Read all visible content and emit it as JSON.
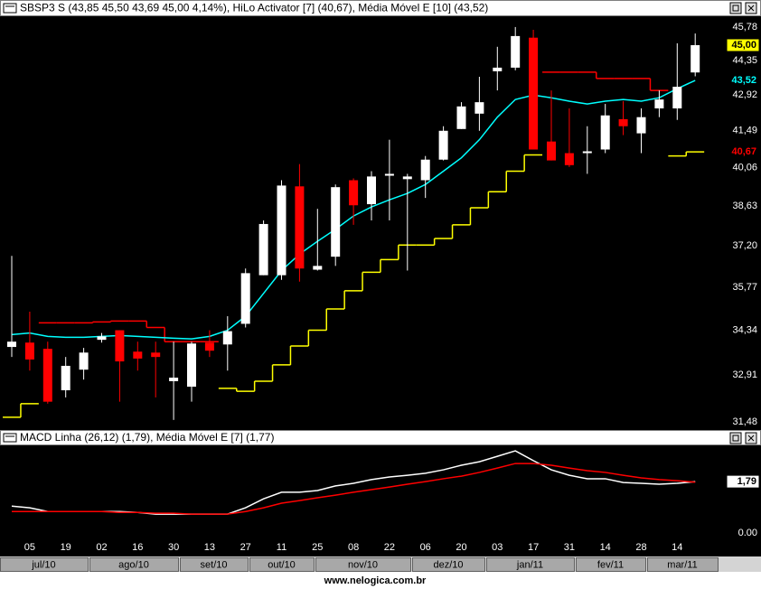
{
  "chart_data": [
    {
      "type": "candlestick",
      "title": "SBSP3 S (43,85  45,50  43,69  45,00  4,14%), HiLo Activator [7] (40,67), Média Móvel E [10] (43,52)",
      "open": [
        33.8,
        33.94,
        33.74,
        32.44,
        33.08,
        34.03,
        34.34,
        33.65,
        33.62,
        32.72,
        32.55,
        33.94,
        33.88,
        34.55,
        36.18,
        36.18,
        39.36,
        36.37,
        36.82,
        39.59,
        38.7,
        39.76,
        39.63,
        39.59,
        40.37,
        41.56,
        42.17,
        43.9,
        44.05,
        45.32,
        41.07,
        40.62,
        40.62,
        40.76,
        41.95,
        41.39,
        42.38,
        42.38,
        43.85
      ],
      "high": [
        36.85,
        34.95,
        33.97,
        33.48,
        33.77,
        34.25,
        34.34,
        33.97,
        33.97,
        33.97,
        33.97,
        34.34,
        34.8,
        36.41,
        38.11,
        39.59,
        40.2,
        38.53,
        39.43,
        39.66,
        39.93,
        41.14,
        39.83,
        40.51,
        41.67,
        42.63,
        43.67,
        44.93,
        45.78,
        45.66,
        43.11,
        42.38,
        41.67,
        42.56,
        42.67,
        42.38,
        43.11,
        45.08,
        45.5
      ],
      "low": [
        33.48,
        33.05,
        32.03,
        32.22,
        32.77,
        33.94,
        32.09,
        33.05,
        32.22,
        31.54,
        32.09,
        33.48,
        33.05,
        34.43,
        36.18,
        36.02,
        35.96,
        36.34,
        36.5,
        37.95,
        38.11,
        38.11,
        36.34,
        38.93,
        40.34,
        41.56,
        41.49,
        43.11,
        43.94,
        40.76,
        40.34,
        40.09,
        39.83,
        40.62,
        41.32,
        40.62,
        42.03,
        41.92,
        43.69
      ],
      "close": [
        33.97,
        33.4,
        32.09,
        33.2,
        33.62,
        34.14,
        33.34,
        33.43,
        33.48,
        32.83,
        33.91,
        33.68,
        34.31,
        36.25,
        37.98,
        39.39,
        36.41,
        36.5,
        39.33,
        38.66,
        39.73,
        39.83,
        39.73,
        40.37,
        41.49,
        42.46,
        42.63,
        44.05,
        45.39,
        40.76,
        40.34,
        40.16,
        40.69,
        42.1,
        41.67,
        42.03,
        42.74,
        43.26,
        45.0
      ],
      "up_color": "#ffffff",
      "down_color": "#ff0000",
      "series": [
        {
          "color": "#ffff00",
          "style": "step",
          "values": [
            31.62,
            32.03,
            null,
            null,
            null,
            null,
            null,
            null,
            null,
            null,
            null,
            null,
            32.5,
            32.41,
            32.72,
            33.23,
            33.83,
            34.34,
            35.04,
            35.65,
            36.28,
            36.72,
            37.23,
            37.23,
            37.46,
            37.95,
            38.57,
            39.16,
            39.93,
            40.55,
            null,
            null,
            null,
            null,
            null,
            null,
            null,
            40.51,
            40.67
          ]
        },
        {
          "color": "#ff0000",
          "style": "step",
          "values": [
            null,
            null,
            34.58,
            34.58,
            34.58,
            34.61,
            34.64,
            34.64,
            34.43,
            33.97,
            33.97,
            33.97,
            null,
            null,
            null,
            null,
            null,
            null,
            null,
            null,
            null,
            null,
            null,
            null,
            null,
            null,
            null,
            null,
            null,
            null,
            43.86,
            43.86,
            43.86,
            43.6,
            43.6,
            43.6,
            43.11,
            null,
            null
          ]
        },
        {
          "color": "#00ffff",
          "style": "line",
          "values": [
            34.2,
            34.25,
            34.14,
            34.11,
            34.11,
            34.14,
            34.17,
            34.14,
            34.11,
            34.08,
            34.06,
            34.14,
            34.34,
            34.8,
            35.56,
            36.34,
            36.91,
            37.36,
            37.79,
            38.27,
            38.6,
            38.86,
            39.1,
            39.43,
            39.93,
            40.44,
            41.14,
            42.03,
            42.74,
            42.92,
            42.81,
            42.67,
            42.56,
            42.67,
            42.74,
            42.67,
            42.81,
            43.18,
            43.52
          ]
        }
      ],
      "ylim": [
        31.24,
        46.25
      ],
      "log_scale": true,
      "yticks": [
        {
          "value": 45.78,
          "label": "45,78"
        },
        {
          "value": 44.35,
          "label": "44,35"
        },
        {
          "value": 42.92,
          "label": "42,92"
        },
        {
          "value": 41.49,
          "label": "41,49"
        },
        {
          "value": 40.06,
          "label": "40,06"
        },
        {
          "value": 38.63,
          "label": "38,63"
        },
        {
          "value": 37.2,
          "label": "37,20"
        },
        {
          "value": 35.77,
          "label": "35,77"
        },
        {
          "value": 34.34,
          "label": "34,34"
        },
        {
          "value": 32.91,
          "label": "32,91"
        },
        {
          "value": 31.48,
          "label": "31,48"
        }
      ],
      "markers": [
        {
          "value": 45.0,
          "label": "45,00",
          "color": "#000000",
          "background": "#ffff00"
        },
        {
          "value": 43.52,
          "label": "43,52",
          "color": "#00ffff",
          "background": "#000000"
        },
        {
          "value": 40.67,
          "label": "40,67",
          "color": "#ff0000",
          "background": "#000000"
        }
      ]
    },
    {
      "type": "line",
      "title": "MACD Linha (26,12) (1,79), Média Móvel E [7] (1,77)",
      "categories": [
        null,
        "05",
        null,
        "19",
        null,
        "02",
        null,
        "16",
        null,
        "30",
        null,
        "13",
        null,
        "27",
        null,
        "11",
        null,
        "25",
        null,
        "08",
        null,
        "22",
        null,
        "06",
        null,
        "20",
        null,
        "03",
        null,
        "17",
        null,
        "31",
        null,
        "14",
        null,
        "28",
        null,
        "14",
        null
      ],
      "months": [
        "jul/10",
        "ago/10",
        "set/10",
        "out/10",
        "nov/10",
        "dez/10",
        "jan/11",
        "fev/11",
        "mar/11"
      ],
      "series": [
        {
          "color": "#ffffff",
          "values": [
            0.94,
            0.88,
            0.75,
            0.75,
            0.75,
            0.75,
            0.75,
            0.72,
            0.66,
            0.66,
            0.66,
            0.66,
            0.66,
            0.88,
            1.19,
            1.42,
            1.42,
            1.48,
            1.64,
            1.73,
            1.86,
            1.95,
            2.01,
            2.08,
            2.2,
            2.36,
            2.48,
            2.67,
            2.86,
            2.52,
            2.2,
            2.01,
            1.89,
            1.89,
            1.76,
            1.73,
            1.7,
            1.73,
            1.79
          ]
        },
        {
          "color": "#ff0000",
          "values": [
            0.75,
            0.75,
            0.75,
            0.75,
            0.75,
            0.75,
            0.72,
            0.72,
            0.69,
            0.69,
            0.66,
            0.66,
            0.66,
            0.75,
            0.88,
            1.04,
            1.13,
            1.23,
            1.32,
            1.42,
            1.51,
            1.6,
            1.7,
            1.79,
            1.89,
            1.98,
            2.11,
            2.26,
            2.42,
            2.42,
            2.36,
            2.26,
            2.17,
            2.11,
            2.01,
            1.92,
            1.86,
            1.82,
            1.77
          ]
        }
      ],
      "ylim": [
        -0.31,
        3.05
      ],
      "yticks": [
        {
          "value": 0,
          "label": "0.00"
        }
      ],
      "markers": [
        {
          "value": 1.79,
          "label": "1,79",
          "color": "#000000",
          "background": "#ffffff"
        }
      ]
    }
  ],
  "footer": "www.nelogica.com.br"
}
